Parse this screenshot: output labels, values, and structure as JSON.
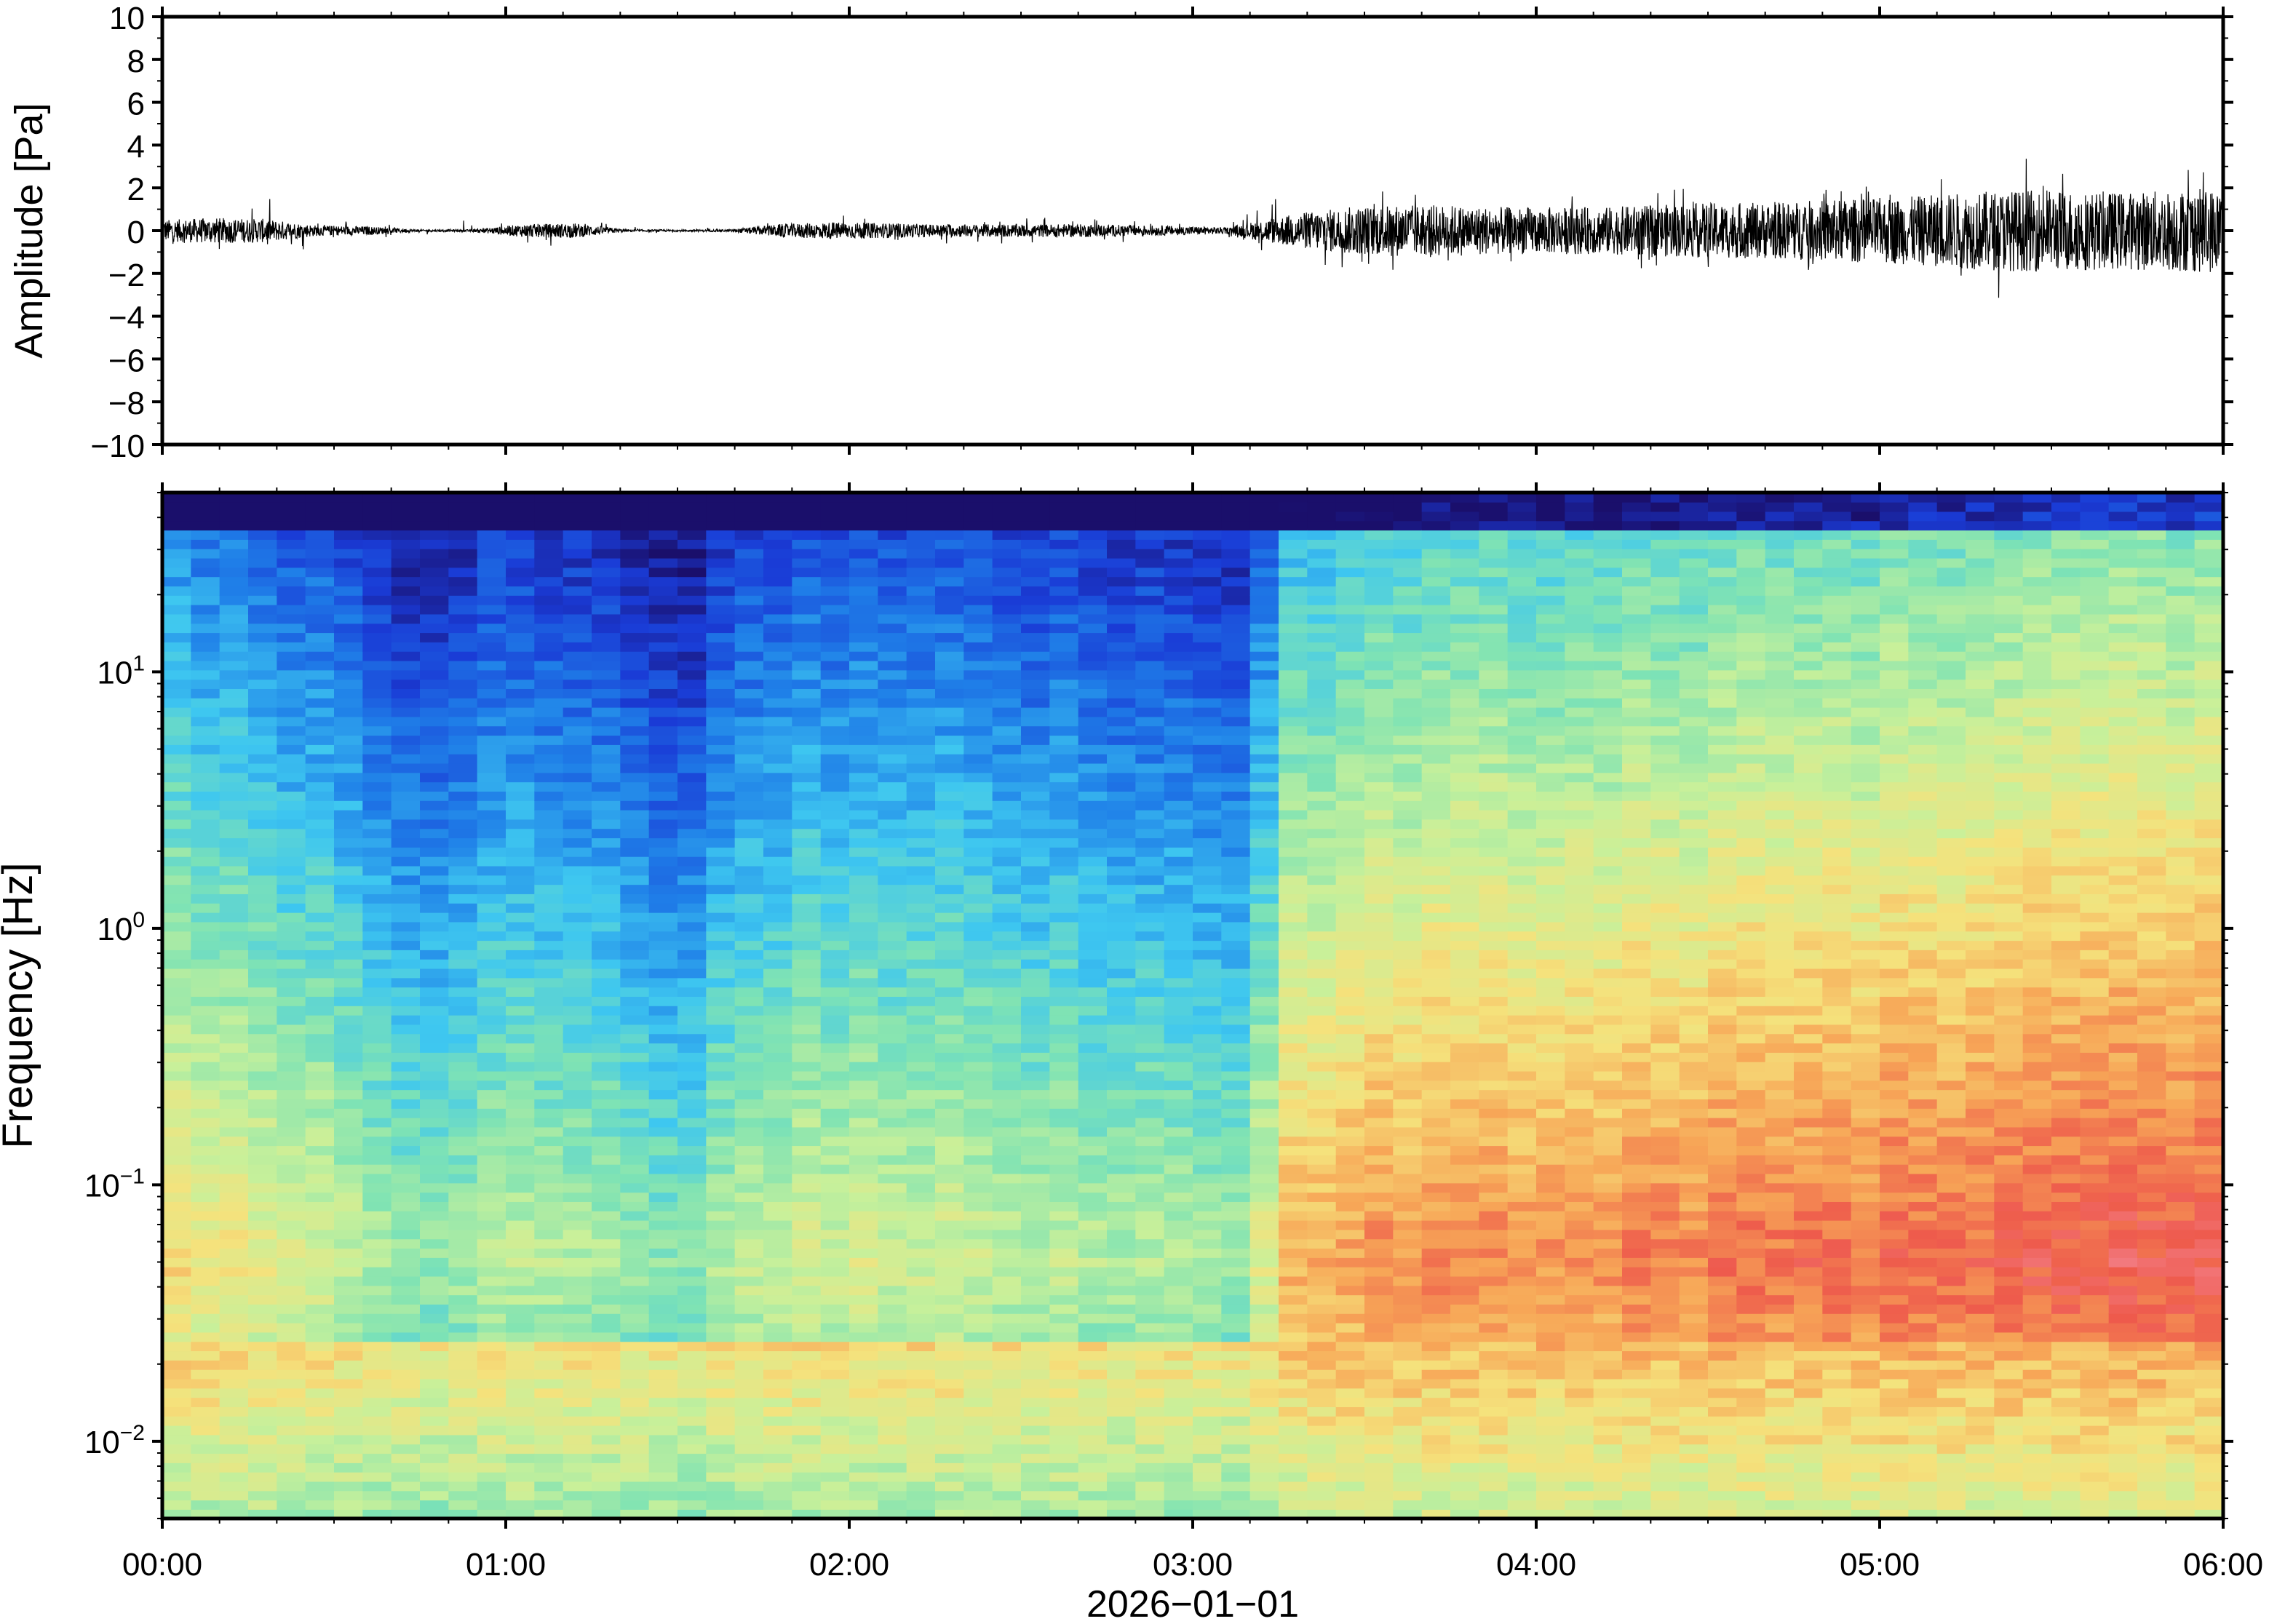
{
  "chart_data": [
    {
      "type": "line",
      "panel": "waveform",
      "xlabel": "",
      "ylabel": "Amplitude [Pa]",
      "ylim": [
        -10,
        10
      ],
      "yticks": [
        -10,
        -8,
        -6,
        -4,
        -2,
        0,
        2,
        4,
        6,
        8,
        10
      ],
      "ytick_labels": [
        "−10",
        "−8",
        "−6",
        "−4",
        "−2",
        "0",
        "2",
        "4",
        "6",
        "8",
        "10"
      ],
      "xlim_hours": [
        0,
        6
      ],
      "envelope": {
        "x_hours": [
          0.0,
          0.15,
          0.3,
          0.45,
          0.6,
          0.75,
          0.9,
          1.05,
          1.2,
          1.35,
          1.5,
          1.65,
          1.8,
          1.95,
          2.1,
          2.25,
          2.4,
          2.55,
          2.7,
          2.85,
          3.0,
          3.1,
          3.2,
          3.3,
          3.45,
          3.6,
          3.75,
          3.9,
          4.05,
          4.2,
          4.35,
          4.5,
          4.65,
          4.8,
          4.95,
          5.1,
          5.25,
          5.4,
          5.55,
          5.7,
          5.85,
          6.0
        ],
        "half_amplitude_pa": [
          0.5,
          0.6,
          0.55,
          0.25,
          0.2,
          0.05,
          0.05,
          0.3,
          0.35,
          0.05,
          0.05,
          0.05,
          0.3,
          0.4,
          0.35,
          0.3,
          0.3,
          0.3,
          0.3,
          0.25,
          0.2,
          0.15,
          0.5,
          0.8,
          1.1,
          1.2,
          1.2,
          1.1,
          1.1,
          1.1,
          1.2,
          1.3,
          1.3,
          1.4,
          1.5,
          1.6,
          1.8,
          1.9,
          1.9,
          1.8,
          1.9,
          2.0
        ],
        "max_spike_pa": [
          1.3,
          1.0,
          1.7,
          0.6,
          0.4,
          0.2,
          0.7,
          0.8,
          0.8,
          0.2,
          0.1,
          0.2,
          0.7,
          0.8,
          0.7,
          0.6,
          0.6,
          0.6,
          0.6,
          0.5,
          0.4,
          0.3,
          1.2,
          2.1,
          2.0,
          1.9,
          1.7,
          1.6,
          1.6,
          1.7,
          1.9,
          2.2,
          2.0,
          2.4,
          2.2,
          2.5,
          3.0,
          3.5,
          3.0,
          2.8,
          3.8,
          2.6
        ]
      }
    },
    {
      "type": "heatmap",
      "panel": "spectrogram",
      "xlabel": "2026−01−01",
      "ylabel": "Frequency [Hz]",
      "yscale": "log",
      "ylim": [
        0.005,
        50
      ],
      "ytick_values": [
        0.01,
        0.1,
        1,
        10
      ],
      "ytick_labels": [
        {
          "base": "10",
          "exp": "−2"
        },
        {
          "base": "10",
          "exp": "−1"
        },
        {
          "base": "10",
          "exp": "0"
        },
        {
          "base": "10",
          "exp": "1"
        }
      ],
      "xticks": [
        "00:00",
        "01:00",
        "02:00",
        "03:00",
        "04:00",
        "05:00",
        "06:00"
      ],
      "xtick_hours": [
        0,
        1,
        2,
        3,
        4,
        5,
        6
      ],
      "colormap": [
        "#1a0f6b",
        "#1a3bd6",
        "#1f7fe8",
        "#3ec7f0",
        "#7fe3b4",
        "#c8f09a",
        "#f5e27c",
        "#f7a657",
        "#ee5a4c",
        "#f58a9a"
      ],
      "energy_profile": {
        "x_hours": [
          0.0,
          0.25,
          0.5,
          0.75,
          1.0,
          1.25,
          1.5,
          1.75,
          2.0,
          2.25,
          2.5,
          2.75,
          3.0,
          3.15,
          3.3,
          3.5,
          3.75,
          4.0,
          4.25,
          4.5,
          4.75,
          5.0,
          5.25,
          5.5,
          5.75,
          6.0
        ],
        "relative_level": [
          0.55,
          0.5,
          0.35,
          0.2,
          0.3,
          0.3,
          0.15,
          0.35,
          0.4,
          0.38,
          0.33,
          0.3,
          0.28,
          0.25,
          0.7,
          0.78,
          0.8,
          0.8,
          0.82,
          0.84,
          0.86,
          0.88,
          0.92,
          0.95,
          0.96,
          0.98
        ]
      },
      "notes_peak_band_hz": [
        0.03,
        0.2
      ]
    }
  ]
}
